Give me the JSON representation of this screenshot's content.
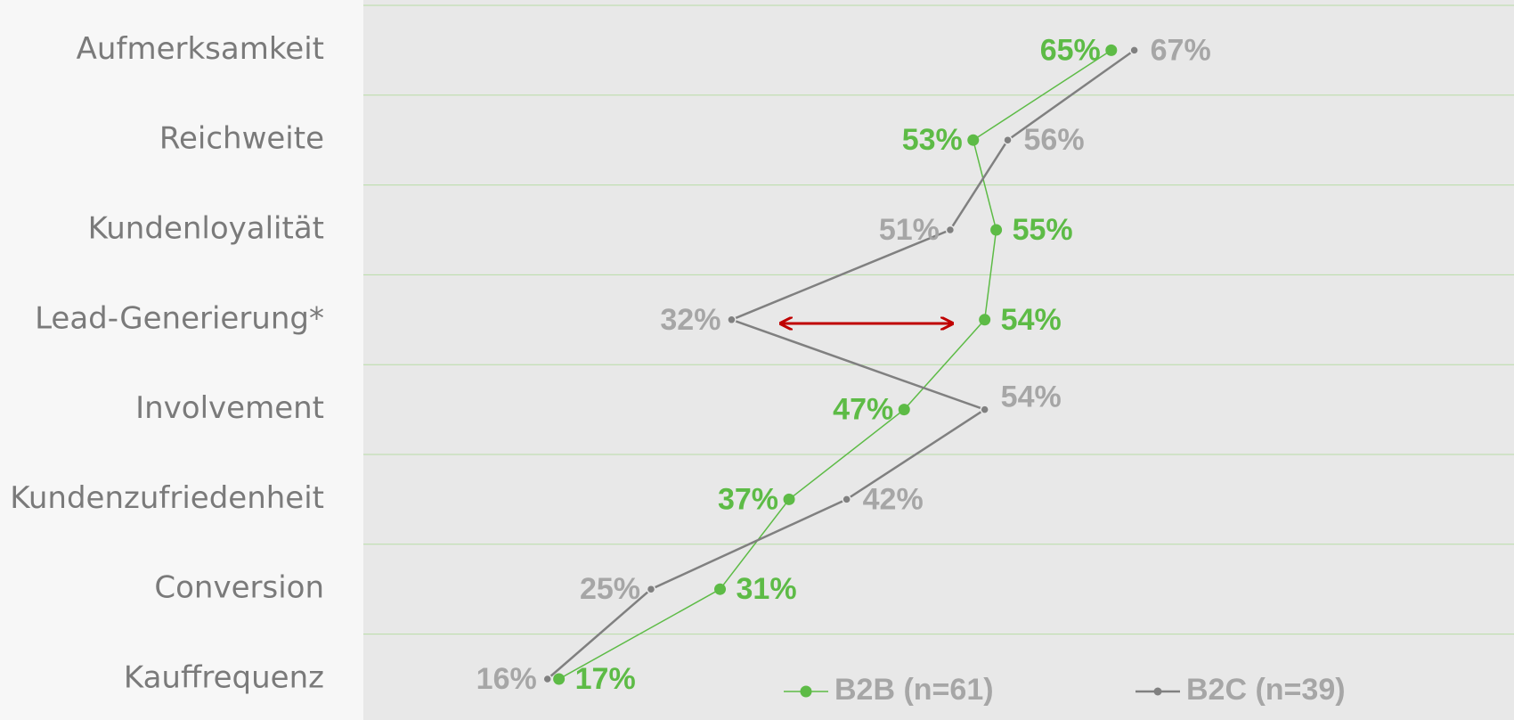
{
  "chart_data": {
    "type": "line",
    "orientation": "horizontal",
    "categories": [
      "Aufmerksamkeit",
      "Reichweite",
      "Kundenloyalität",
      "Lead-Generierung*",
      "Involvement",
      "Kundenzufriedenheit",
      "Conversion",
      "Kauffrequenz"
    ],
    "series": [
      {
        "name": "B2B (n=61)",
        "color": "#5dbb46",
        "values": [
          65,
          53,
          55,
          54,
          47,
          37,
          31,
          17
        ],
        "value_labels": [
          "65%",
          "53%",
          "55%",
          "54%",
          "47%",
          "37%",
          "31%",
          "17%"
        ]
      },
      {
        "name": "B2C (n=39)",
        "color": "#808080",
        "values": [
          67,
          56,
          51,
          32,
          54,
          42,
          25,
          16
        ],
        "value_labels": [
          "67%",
          "56%",
          "51%",
          "32%",
          "54%",
          "42%",
          "25%",
          "16%"
        ]
      }
    ],
    "xlim": [
      0,
      100
    ],
    "grid": true,
    "legend": "bottom"
  }
}
